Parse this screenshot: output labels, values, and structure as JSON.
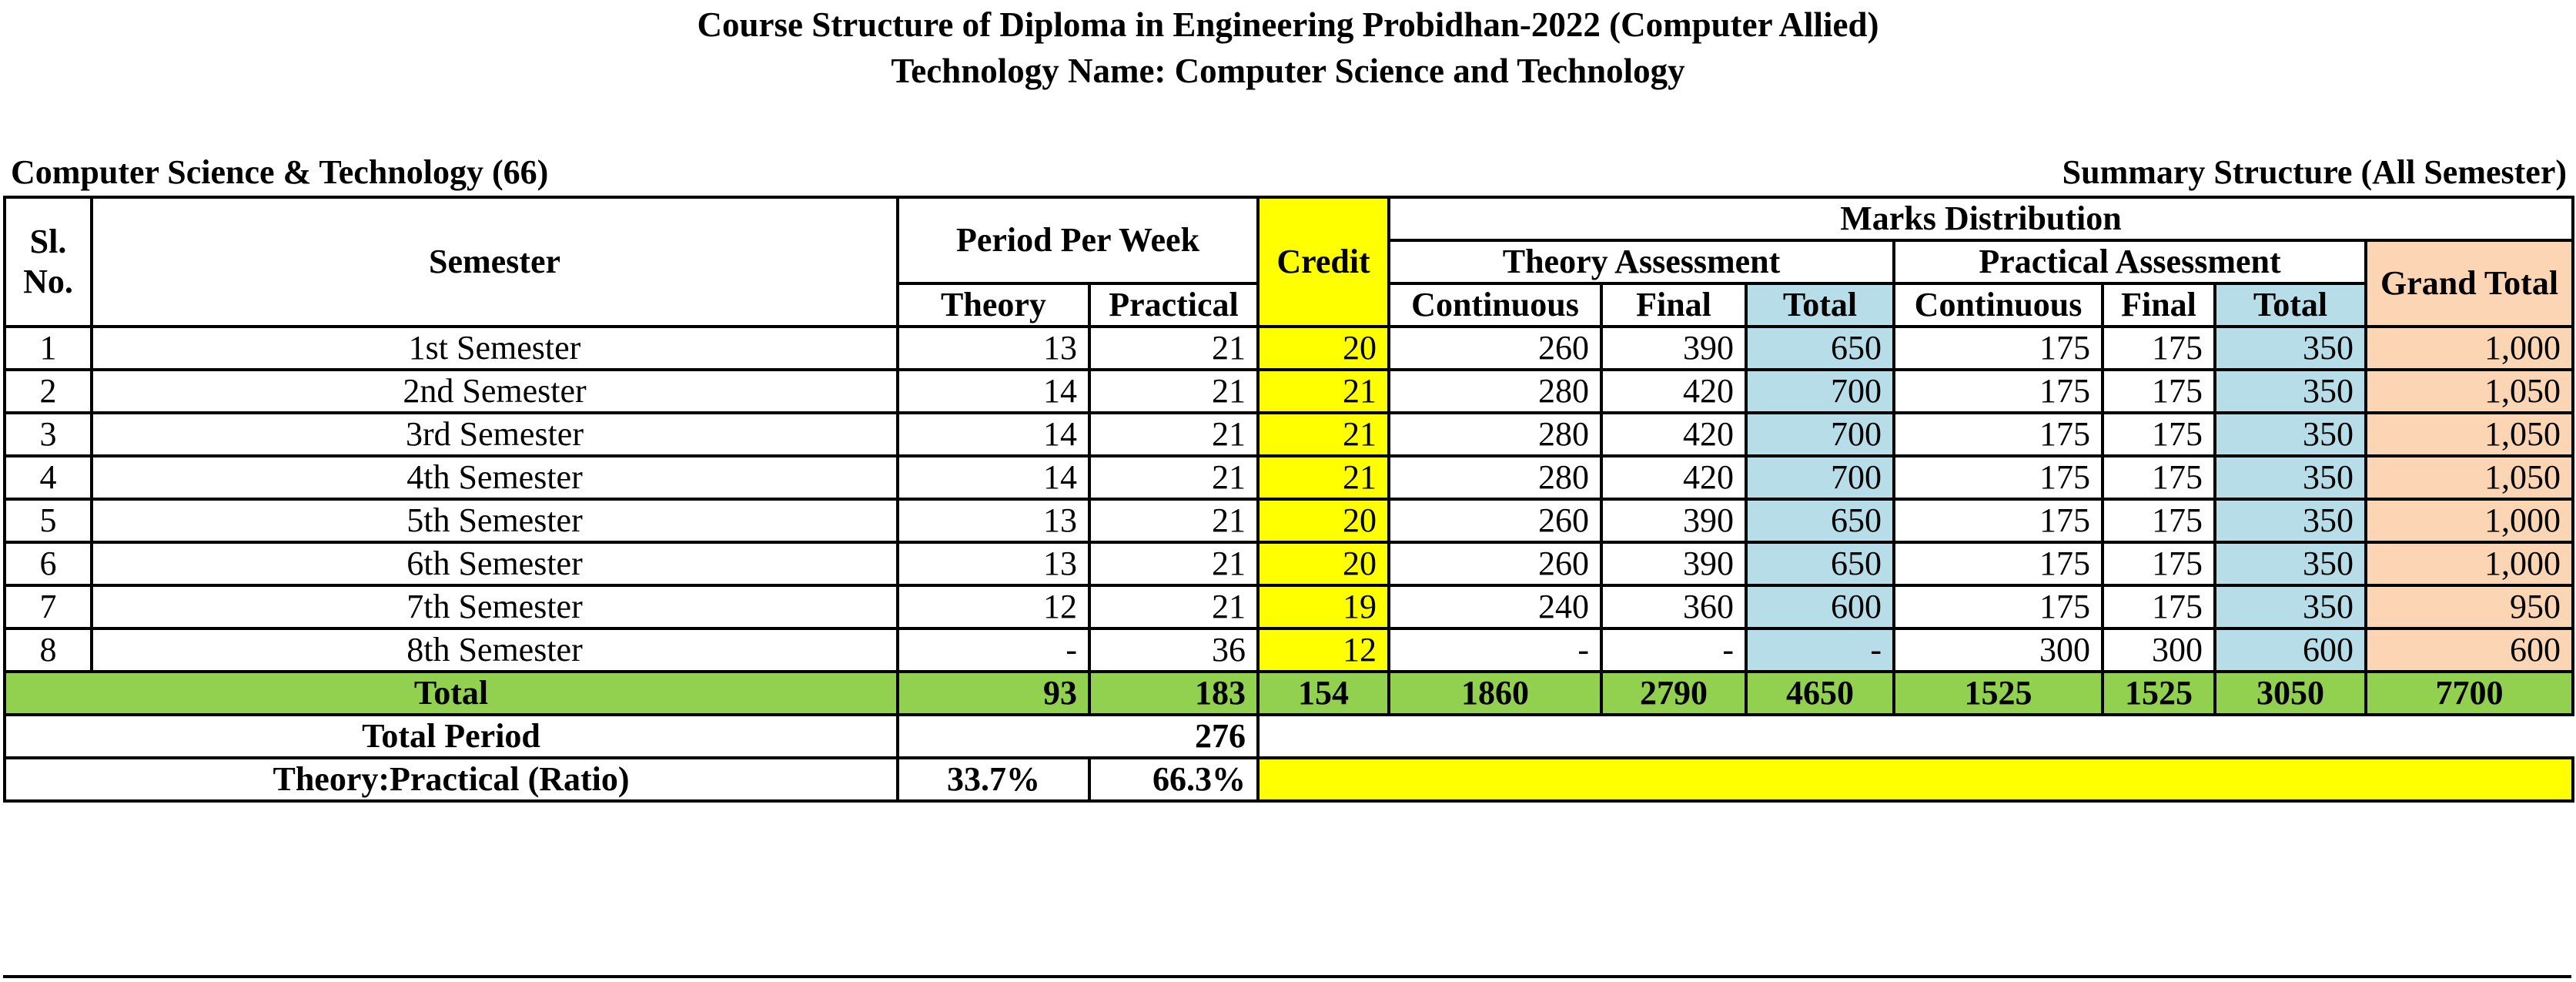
{
  "titles": {
    "line1": "Course Structure of Diploma in Engineering Probidhan-2022 (Computer Allied)",
    "line2": "Technology Name: Computer Science and Technology"
  },
  "captions": {
    "left": "Computer Science & Technology (66)",
    "right": "Summary Structure (All Semester)"
  },
  "headers": {
    "sl_no": "Sl. No.",
    "semester": "Semester",
    "period_per_week": "Period Per Week",
    "theory": "Theory",
    "practical": "Practical",
    "credit": "Credit",
    "marks_distribution": "Marks Distribution",
    "theory_assessment": "Theory Assessment",
    "practical_assessment": "Practical Assessment",
    "continuous": "Continuous",
    "final": "Final",
    "total": "Total",
    "grand_total": "Grand Total"
  },
  "rows": [
    {
      "sl": "1",
      "semester": "1st Semester",
      "theory": "13",
      "practical": "21",
      "credit": "20",
      "th_cont": "260",
      "th_final": "390",
      "th_total": "650",
      "pr_cont": "175",
      "pr_final": "175",
      "pr_total": "350",
      "grand": "1,000"
    },
    {
      "sl": "2",
      "semester": "2nd Semester",
      "theory": "14",
      "practical": "21",
      "credit": "21",
      "th_cont": "280",
      "th_final": "420",
      "th_total": "700",
      "pr_cont": "175",
      "pr_final": "175",
      "pr_total": "350",
      "grand": "1,050"
    },
    {
      "sl": "3",
      "semester": "3rd Semester",
      "theory": "14",
      "practical": "21",
      "credit": "21",
      "th_cont": "280",
      "th_final": "420",
      "th_total": "700",
      "pr_cont": "175",
      "pr_final": "175",
      "pr_total": "350",
      "grand": "1,050"
    },
    {
      "sl": "4",
      "semester": "4th Semester",
      "theory": "14",
      "practical": "21",
      "credit": "21",
      "th_cont": "280",
      "th_final": "420",
      "th_total": "700",
      "pr_cont": "175",
      "pr_final": "175",
      "pr_total": "350",
      "grand": "1,050"
    },
    {
      "sl": "5",
      "semester": "5th Semester",
      "theory": "13",
      "practical": "21",
      "credit": "20",
      "th_cont": "260",
      "th_final": "390",
      "th_total": "650",
      "pr_cont": "175",
      "pr_final": "175",
      "pr_total": "350",
      "grand": "1,000"
    },
    {
      "sl": "6",
      "semester": "6th Semester",
      "theory": "13",
      "practical": "21",
      "credit": "20",
      "th_cont": "260",
      "th_final": "390",
      "th_total": "650",
      "pr_cont": "175",
      "pr_final": "175",
      "pr_total": "350",
      "grand": "1,000"
    },
    {
      "sl": "7",
      "semester": "7th Semester",
      "theory": "12",
      "practical": "21",
      "credit": "19",
      "th_cont": "240",
      "th_final": "360",
      "th_total": "600",
      "pr_cont": "175",
      "pr_final": "175",
      "pr_total": "350",
      "grand": "950"
    },
    {
      "sl": "8",
      "semester": "8th Semester",
      "theory": "-",
      "practical": "36",
      "credit": "12",
      "th_cont": "-",
      "th_final": "-",
      "th_total": "-",
      "pr_cont": "300",
      "pr_final": "300",
      "pr_total": "600",
      "grand": "600"
    }
  ],
  "totals": {
    "label": "Total",
    "theory": "93",
    "practical": "183",
    "credit": "154",
    "th_cont": "1860",
    "th_final": "2790",
    "th_total": "4650",
    "pr_cont": "1525",
    "pr_final": "1525",
    "pr_total": "3050",
    "grand": "7700"
  },
  "total_period": {
    "label": "Total Period",
    "value": "276"
  },
  "ratio": {
    "label": "Theory:Practical (Ratio)",
    "theory": "33.7%",
    "practical": "66.3%"
  },
  "colors": {
    "credit": "#ffff00",
    "assessment_total": "#b7dde8",
    "grand_total": "#fcd5b4",
    "total_row": "#92d050"
  }
}
